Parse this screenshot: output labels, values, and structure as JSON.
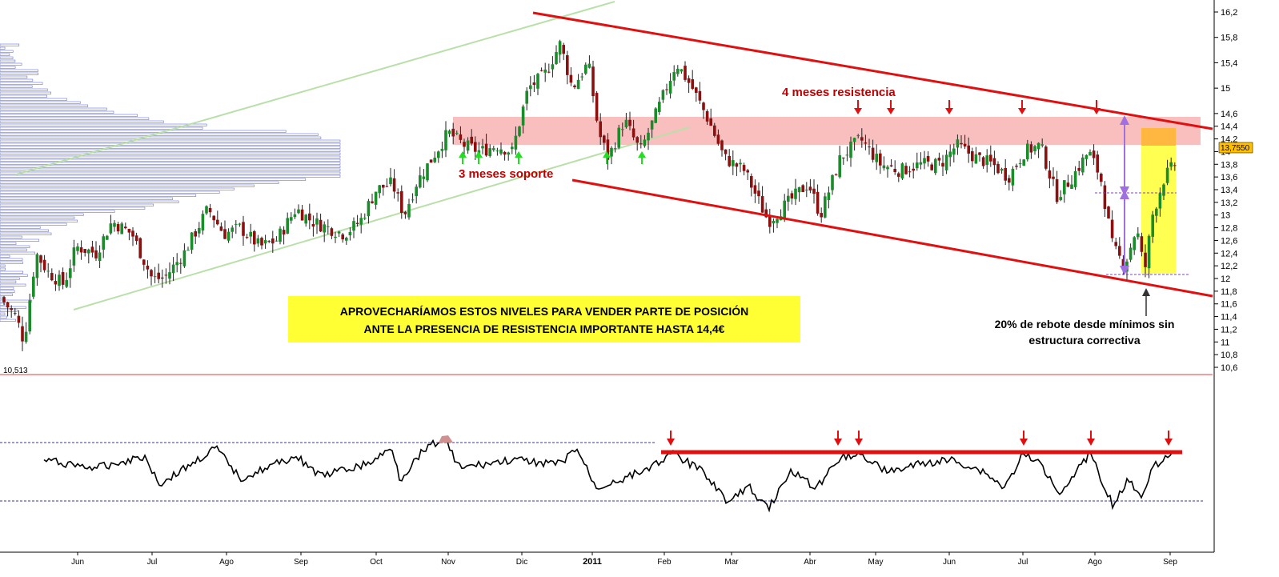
{
  "chart_data": [
    {
      "type": "candlestick",
      "title": "",
      "x_start": "2010-05",
      "x_end": "2011-09",
      "ylim": [
        10.5,
        16.3
      ],
      "y_ticks": [
        "16,2",
        "15,8",
        "15,4",
        "15",
        "14,6",
        "14,4",
        "14,2",
        "14",
        "13,8",
        "13,6",
        "13,4",
        "13,2",
        "13",
        "12,8",
        "12,6",
        "12,4",
        "12,2",
        "12",
        "11,8",
        "11,6",
        "11,4",
        "11,2",
        "11",
        "10,8",
        "10,6"
      ],
      "x_ticks": [
        "Jun",
        "Jul",
        "Ago",
        "Sep",
        "Oct",
        "Nov",
        "Dic",
        "2011",
        "Feb",
        "Mar",
        "Abr",
        "May",
        "Jun",
        "Jul",
        "Ago",
        "Sep"
      ],
      "last_price_label": "13,7550",
      "low_label": "10,513",
      "resistance_zone": [
        13.8,
        14.3
      ],
      "anchor_closes": [
        [
          0,
          11.7
        ],
        [
          20,
          11.4
        ],
        [
          30,
          11.0
        ],
        [
          45,
          12.4
        ],
        [
          60,
          12.1
        ],
        [
          80,
          11.9
        ],
        [
          95,
          12.5
        ],
        [
          120,
          12.4
        ],
        [
          140,
          12.9
        ],
        [
          165,
          12.7
        ],
        [
          190,
          12.0
        ],
        [
          205,
          12.0
        ],
        [
          230,
          12.4
        ],
        [
          260,
          13.1
        ],
        [
          280,
          12.7
        ],
        [
          300,
          12.8
        ],
        [
          325,
          12.5
        ],
        [
          345,
          12.6
        ],
        [
          370,
          13.1
        ],
        [
          390,
          12.9
        ],
        [
          410,
          12.8
        ],
        [
          430,
          12.7
        ],
        [
          450,
          12.9
        ],
        [
          470,
          13.4
        ],
        [
          490,
          13.5
        ],
        [
          505,
          13.0
        ],
        [
          520,
          13.5
        ],
        [
          540,
          13.9
        ],
        [
          560,
          14.3
        ],
        [
          580,
          14.1
        ],
        [
          600,
          14.0
        ],
        [
          620,
          14.1
        ],
        [
          640,
          14.0
        ],
        [
          660,
          15.0
        ],
        [
          680,
          15.2
        ],
        [
          700,
          15.7
        ],
        [
          715,
          15.0
        ],
        [
          735,
          15.4
        ],
        [
          748,
          14.3
        ],
        [
          760,
          13.9
        ],
        [
          780,
          14.5
        ],
        [
          800,
          14.0
        ],
        [
          820,
          14.6
        ],
        [
          845,
          15.4
        ],
        [
          865,
          15.0
        ],
        [
          885,
          14.5
        ],
        [
          905,
          13.9
        ],
        [
          930,
          13.7
        ],
        [
          960,
          12.9
        ],
        [
          985,
          13.2
        ],
        [
          1010,
          13.5
        ],
        [
          1025,
          13.0
        ],
        [
          1050,
          13.9
        ],
        [
          1075,
          14.2
        ],
        [
          1100,
          13.8
        ],
        [
          1125,
          13.7
        ],
        [
          1150,
          13.8
        ],
        [
          1175,
          13.8
        ],
        [
          1195,
          14.1
        ],
        [
          1220,
          13.9
        ],
        [
          1240,
          13.8
        ],
        [
          1260,
          13.6
        ],
        [
          1280,
          14.0
        ],
        [
          1300,
          14.1
        ],
        [
          1320,
          13.3
        ],
        [
          1340,
          13.6
        ],
        [
          1360,
          14.0
        ],
        [
          1375,
          13.6
        ],
        [
          1390,
          12.5
        ],
        [
          1405,
          12.2
        ],
        [
          1420,
          12.8
        ],
        [
          1430,
          12.1
        ],
        [
          1440,
          13.0
        ],
        [
          1455,
          13.6
        ],
        [
          1468,
          13.8
        ]
      ],
      "annotations": {
        "resistance_label": "4 meses resistencia",
        "support_label": "3 meses soporte",
        "rebound_line1": "20% de rebote desde mínimos sin",
        "rebound_line2": "estructura correctiva",
        "box_line1": "APROVECHARÍAMOS ESTOS NIVELES PARA VENDER PARTE DE POSICIÓN",
        "box_line2": "ANTE LA PRESENCIA DE RESISTENCIA IMPORTANTE HASTA 14,4€"
      }
    },
    {
      "type": "line",
      "title": "",
      "ylim": [
        0,
        100
      ],
      "upper_band": 80,
      "lower_band": 20,
      "resistance_level": 72
    }
  ],
  "colors": {
    "bull_candle": "#1a8c2a",
    "bear_candle": "#8b1010",
    "channel": "#e01010",
    "uptrend": "#b8e0a8",
    "zone": "#f7a8a8",
    "highlight": "#ffff33",
    "box": "#ffff33",
    "volume_profile": "#6670e0",
    "indicator": "#000000",
    "band": "#3333aa"
  }
}
